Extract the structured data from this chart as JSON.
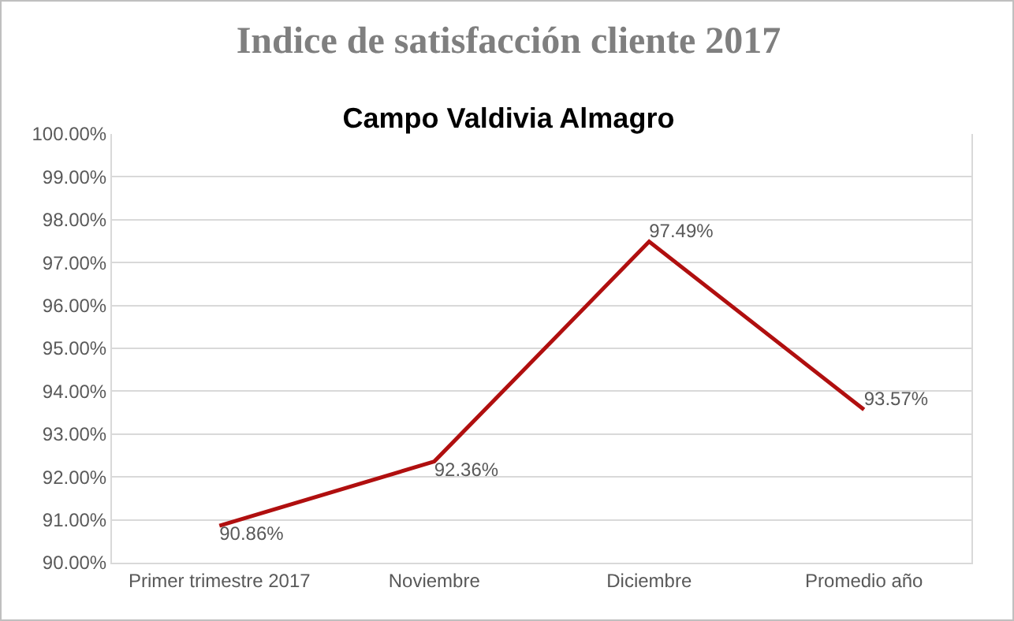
{
  "chart_data": {
    "type": "line",
    "title": "Indice de satisfacción cliente 2017",
    "subtitle": "Campo Valdivia Almagro",
    "categories": [
      "Primer trimestre 2017",
      "Noviembre",
      "Diciembre",
      "Promedio año"
    ],
    "values": [
      90.86,
      92.36,
      97.49,
      93.57
    ],
    "value_labels": [
      "90.86%",
      "92.36%",
      "97.49%",
      "93.57%"
    ],
    "color": "#b00f0f",
    "marker": "none",
    "line_style": "solid",
    "grid": "y",
    "legend": false,
    "ylim": [
      90,
      100
    ],
    "yticks": [
      {
        "value": 90,
        "label": "90.00%"
      },
      {
        "value": 91,
        "label": "91.00%"
      },
      {
        "value": 92,
        "label": "92.00%"
      },
      {
        "value": 93,
        "label": "93.00%"
      },
      {
        "value": 94,
        "label": "94.00%"
      },
      {
        "value": 95,
        "label": "95.00%"
      },
      {
        "value": 96,
        "label": "96.00%"
      },
      {
        "value": 97,
        "label": "97.00%"
      },
      {
        "value": 98,
        "label": "98.00%"
      },
      {
        "value": 99,
        "label": "99.00%"
      },
      {
        "value": 100,
        "label": "100.00%"
      }
    ]
  }
}
